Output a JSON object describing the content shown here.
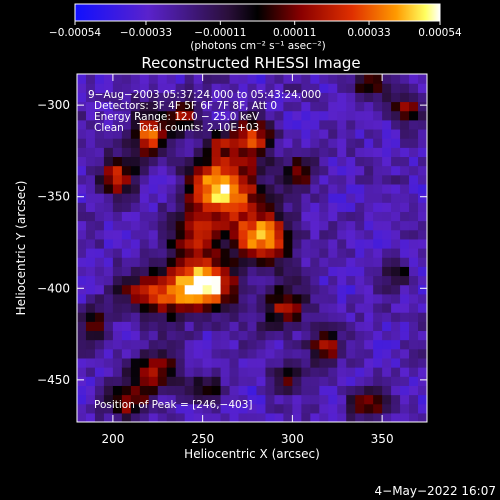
{
  "chart_data": {
    "type": "heatmap",
    "title": "Reconstructed RHESSI Image",
    "xlabel": "Heliocentric X (arcsec)",
    "ylabel": "Heliocentric Y (arcsec)",
    "xlim": [
      180,
      375
    ],
    "ylim": [
      -473,
      -283
    ],
    "x_ticks": [
      200,
      250,
      300,
      350
    ],
    "y_ticks": [
      -300,
      -350,
      -400,
      -450
    ],
    "colorbar": {
      "min": -0.00054,
      "max": 0.00054,
      "ticks": [
        {
          "value": -0.00054,
          "label": "−0.00054"
        },
        {
          "value": -0.00033,
          "label": "−0.00033"
        },
        {
          "value": -0.00011,
          "label": "−0.00011"
        },
        {
          "value": 0.00011,
          "label": "0.00011"
        },
        {
          "value": 0.00033,
          "label": "0.00033"
        },
        {
          "value": 0.00054,
          "label": "0.00054"
        }
      ],
      "unit_label": "(photons cm⁻² s⁻¹ asec⁻²)"
    },
    "annotations": {
      "time_range": "9−Aug−2003 05:37:24.000 to 05:43:24.000",
      "detectors": "Detectors: 3F 4F 5F 6F 7F 8F, Att 0",
      "energy_range": "Energy Range: 12.0 − 25.0 keV",
      "clean_counts": "Clean    Total counts: 2.10E+03",
      "peak": "Position of Peak = [246,−403]"
    },
    "peak": [
      246,
      -403
    ],
    "blobs": [
      {
        "x": 262,
        "y": -345,
        "sx": 14,
        "sy": 12,
        "amp": 1.0
      },
      {
        "x": 284,
        "y": -372,
        "sx": 12,
        "sy": 10,
        "amp": 0.85
      },
      {
        "x": 252,
        "y": -398,
        "sx": 12,
        "sy": 10,
        "amp": 0.95
      },
      {
        "x": 226,
        "y": -402,
        "sx": 14,
        "sy": 9,
        "amp": 0.75
      },
      {
        "x": 246,
        "y": -372,
        "sx": 10,
        "sy": 10,
        "amp": 0.6
      },
      {
        "x": 220,
        "y": -315,
        "sx": 8,
        "sy": 9,
        "amp": 0.75
      },
      {
        "x": 202,
        "y": -338,
        "sx": 7,
        "sy": 8,
        "amp": 0.6
      },
      {
        "x": 240,
        "y": -305,
        "sx": 6,
        "sy": 6,
        "amp": 0.55
      },
      {
        "x": 278,
        "y": -318,
        "sx": 8,
        "sy": 8,
        "amp": 0.65
      },
      {
        "x": 258,
        "y": -320,
        "sx": 6,
        "sy": 5,
        "amp": 0.5
      },
      {
        "x": 305,
        "y": -335,
        "sx": 6,
        "sy": 7,
        "amp": 0.45
      },
      {
        "x": 295,
        "y": -410,
        "sx": 9,
        "sy": 9,
        "amp": 0.55
      },
      {
        "x": 318,
        "y": -432,
        "sx": 7,
        "sy": 6,
        "amp": 0.6
      },
      {
        "x": 296,
        "y": -448,
        "sx": 6,
        "sy": 5,
        "amp": 0.45
      },
      {
        "x": 342,
        "y": -463,
        "sx": 8,
        "sy": 6,
        "amp": 0.55
      },
      {
        "x": 224,
        "y": -445,
        "sx": 10,
        "sy": 8,
        "amp": 0.6
      },
      {
        "x": 208,
        "y": -462,
        "sx": 9,
        "sy": 6,
        "amp": 0.55
      },
      {
        "x": 252,
        "y": -455,
        "sx": 6,
        "sy": 5,
        "amp": 0.4
      },
      {
        "x": 363,
        "y": -302,
        "sx": 6,
        "sy": 6,
        "amp": 0.6
      },
      {
        "x": 343,
        "y": -288,
        "sx": 7,
        "sy": 5,
        "amp": 0.5
      },
      {
        "x": 358,
        "y": -392,
        "sx": 5,
        "sy": 5,
        "amp": 0.4
      },
      {
        "x": 190,
        "y": -420,
        "sx": 6,
        "sy": 8,
        "amp": 0.45
      }
    ]
  },
  "footer": {
    "timestamp": "4−May−2022 16:07"
  }
}
